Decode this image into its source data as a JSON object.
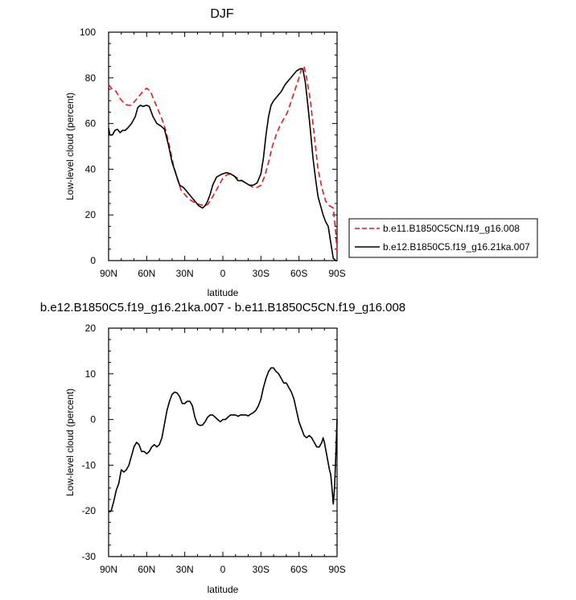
{
  "chart_data": [
    {
      "type": "line",
      "title": "DJF",
      "xlabel": "latitude",
      "ylabel": "Low-level cloud (percent)",
      "xlim": [
        90,
        -90
      ],
      "ylim": [
        0,
        100
      ],
      "x_ticks": [
        90,
        60,
        30,
        0,
        -30,
        -60,
        -90
      ],
      "x_tick_labels": [
        "90N",
        "60N",
        "30N",
        "0",
        "30S",
        "60S",
        "90S"
      ],
      "y_ticks": [
        0,
        20,
        40,
        60,
        80,
        100
      ],
      "y_tick_labels": [
        "0",
        "20",
        "40",
        "60",
        "80",
        "100"
      ],
      "legend_position": "outside-right",
      "series": [
        {
          "name": "b.e11.B1850C5CN.f19_g16.008",
          "color": "#e41a1c",
          "dash": "dashed",
          "points": [
            [
              90,
              77
            ],
            [
              87,
              75
            ],
            [
              84,
              74
            ],
            [
              81,
              71
            ],
            [
              78,
              69
            ],
            [
              75,
              68
            ],
            [
              72,
              68
            ],
            [
              69,
              70
            ],
            [
              66,
              72
            ],
            [
              63,
              74
            ],
            [
              60,
              75.5
            ],
            [
              57,
              74
            ],
            [
              54,
              70
            ],
            [
              51,
              66
            ],
            [
              48,
              62
            ],
            [
              45,
              57
            ],
            [
              42,
              50
            ],
            [
              39,
              42
            ],
            [
              36,
              36
            ],
            [
              33,
              31
            ],
            [
              30,
              29
            ],
            [
              27,
              27
            ],
            [
              24,
              26
            ],
            [
              21,
              25
            ],
            [
              18,
              24.5
            ],
            [
              15,
              24
            ],
            [
              12,
              24.5
            ],
            [
              9,
              27
            ],
            [
              6,
              30
            ],
            [
              3,
              33
            ],
            [
              0,
              36
            ],
            [
              -3,
              37.5
            ],
            [
              -6,
              38
            ],
            [
              -9,
              37
            ],
            [
              -12,
              36
            ],
            [
              -15,
              35
            ],
            [
              -18,
              34
            ],
            [
              -21,
              33
            ],
            [
              -24,
              32
            ],
            [
              -27,
              32
            ],
            [
              -30,
              33
            ],
            [
              -33,
              37
            ],
            [
              -36,
              43
            ],
            [
              -39,
              50
            ],
            [
              -42,
              55
            ],
            [
              -45,
              59
            ],
            [
              -48,
              62
            ],
            [
              -51,
              65
            ],
            [
              -54,
              70
            ],
            [
              -57,
              75
            ],
            [
              -60,
              80
            ],
            [
              -62,
              84
            ],
            [
              -64,
              85
            ],
            [
              -66,
              80
            ],
            [
              -69,
              70
            ],
            [
              -72,
              55
            ],
            [
              -75,
              40
            ],
            [
              -78,
              32
            ],
            [
              -81,
              26
            ],
            [
              -84,
              24
            ],
            [
              -87,
              23
            ],
            [
              -89,
              12
            ],
            [
              -90,
              4
            ]
          ]
        },
        {
          "name": "b.e12.B1850C5.f19_g16.21ka.007",
          "color": "#000000",
          "dash": "solid",
          "points": [
            [
              90,
              58
            ],
            [
              89,
              55
            ],
            [
              87,
              55
            ],
            [
              85,
              57
            ],
            [
              83,
              57.5
            ],
            [
              81,
              56
            ],
            [
              79,
              57
            ],
            [
              77,
              57
            ],
            [
              75,
              58
            ],
            [
              72,
              60
            ],
            [
              69,
              63
            ],
            [
              67,
              67
            ],
            [
              65,
              68
            ],
            [
              63,
              67.5
            ],
            [
              60,
              68
            ],
            [
              58,
              67.5
            ],
            [
              55,
              63
            ],
            [
              52,
              60
            ],
            [
              49,
              59
            ],
            [
              46,
              57.5
            ],
            [
              43,
              51
            ],
            [
              40,
              43
            ],
            [
              37,
              38
            ],
            [
              34,
              33
            ],
            [
              31,
              32
            ],
            [
              28,
              30
            ],
            [
              25,
              28
            ],
            [
              22,
              26
            ],
            [
              19,
              24
            ],
            [
              16,
              23
            ],
            [
              14,
              24
            ],
            [
              12,
              26
            ],
            [
              10,
              29
            ],
            [
              8,
              33
            ],
            [
              5,
              36.5
            ],
            [
              2,
              37.5
            ],
            [
              0,
              38
            ],
            [
              -3,
              38.5
            ],
            [
              -6,
              38
            ],
            [
              -9,
              37
            ],
            [
              -12,
              35
            ],
            [
              -15,
              35
            ],
            [
              -18,
              34
            ],
            [
              -21,
              33
            ],
            [
              -24,
              33
            ],
            [
              -27,
              34
            ],
            [
              -30,
              38
            ],
            [
              -32,
              45
            ],
            [
              -34,
              55
            ],
            [
              -36,
              63
            ],
            [
              -38,
              68
            ],
            [
              -40,
              70
            ],
            [
              -43,
              72
            ],
            [
              -46,
              74
            ],
            [
              -49,
              77
            ],
            [
              -52,
              79
            ],
            [
              -55,
              81
            ],
            [
              -58,
              83
            ],
            [
              -61,
              84
            ],
            [
              -63,
              84
            ],
            [
              -65,
              78
            ],
            [
              -67,
              68
            ],
            [
              -69,
              57
            ],
            [
              -71,
              45
            ],
            [
              -73,
              36
            ],
            [
              -75,
              28
            ],
            [
              -77,
              24
            ],
            [
              -79,
              20
            ],
            [
              -81,
              17
            ],
            [
              -83,
              15
            ],
            [
              -85,
              8
            ],
            [
              -87,
              1
            ],
            [
              -89,
              0
            ],
            [
              -90,
              0
            ]
          ]
        }
      ]
    },
    {
      "type": "line",
      "title": "b.e12.B1850C5.f19_g16.21ka.007 - b.e11.B1850C5CN.f19_g16.008",
      "xlabel": "latitude",
      "ylabel": "Low-level cloud (percent)",
      "xlim": [
        90,
        -90
      ],
      "ylim": [
        -30,
        20
      ],
      "x_ticks": [
        90,
        60,
        30,
        0,
        -30,
        -60,
        -90
      ],
      "x_tick_labels": [
        "90N",
        "60N",
        "30N",
        "0",
        "30S",
        "60S",
        "90S"
      ],
      "y_ticks": [
        -30,
        -20,
        -10,
        0,
        10,
        20
      ],
      "y_tick_labels": [
        "-30",
        "-20",
        "-10",
        "0",
        "10",
        "20"
      ],
      "series": [
        {
          "color": "#000000",
          "dash": "solid",
          "points": [
            [
              90,
              -20
            ],
            [
              89,
              -20.2
            ],
            [
              88,
              -20
            ],
            [
              86,
              -18
            ],
            [
              84,
              -15.5
            ],
            [
              82,
              -14
            ],
            [
              80,
              -11
            ],
            [
              78,
              -11.5
            ],
            [
              76,
              -11
            ],
            [
              74,
              -10
            ],
            [
              72,
              -8
            ],
            [
              70,
              -6
            ],
            [
              68,
              -5
            ],
            [
              66,
              -5.5
            ],
            [
              64,
              -7
            ],
            [
              62,
              -7
            ],
            [
              60,
              -7.5
            ],
            [
              58,
              -7
            ],
            [
              56,
              -6
            ],
            [
              54,
              -5.5
            ],
            [
              52,
              -6
            ],
            [
              50,
              -5.5
            ],
            [
              48,
              -4
            ],
            [
              46,
              -1
            ],
            [
              44,
              2
            ],
            [
              42,
              4
            ],
            [
              40,
              5.5
            ],
            [
              38,
              6
            ],
            [
              36,
              5.8
            ],
            [
              34,
              5
            ],
            [
              32,
              3.5
            ],
            [
              30,
              3.5
            ],
            [
              28,
              4
            ],
            [
              26,
              4
            ],
            [
              24,
              3
            ],
            [
              22,
              0.5
            ],
            [
              20,
              -1
            ],
            [
              18,
              -1.3
            ],
            [
              16,
              -1.2
            ],
            [
              14,
              -0.5
            ],
            [
              12,
              0.5
            ],
            [
              10,
              1
            ],
            [
              8,
              1
            ],
            [
              6,
              0.5
            ],
            [
              4,
              0
            ],
            [
              2,
              -0.5
            ],
            [
              0,
              0
            ],
            [
              -2,
              0
            ],
            [
              -4,
              0.5
            ],
            [
              -6,
              1
            ],
            [
              -8,
              1
            ],
            [
              -10,
              1
            ],
            [
              -12,
              0.7
            ],
            [
              -14,
              1
            ],
            [
              -16,
              1
            ],
            [
              -18,
              1
            ],
            [
              -20,
              0.8
            ],
            [
              -22,
              1.2
            ],
            [
              -24,
              1.5
            ],
            [
              -26,
              2
            ],
            [
              -28,
              3
            ],
            [
              -30,
              4.5
            ],
            [
              -32,
              7
            ],
            [
              -34,
              9
            ],
            [
              -36,
              10.5
            ],
            [
              -38,
              11.3
            ],
            [
              -40,
              11.3
            ],
            [
              -42,
              10.5
            ],
            [
              -44,
              10
            ],
            [
              -46,
              9
            ],
            [
              -48,
              8
            ],
            [
              -50,
              8
            ],
            [
              -52,
              7
            ],
            [
              -54,
              6
            ],
            [
              -56,
              4.5
            ],
            [
              -58,
              2
            ],
            [
              -60,
              -0.5
            ],
            [
              -62,
              -2
            ],
            [
              -64,
              -3.5
            ],
            [
              -66,
              -4
            ],
            [
              -68,
              -3.5
            ],
            [
              -70,
              -4
            ],
            [
              -72,
              -5
            ],
            [
              -74,
              -6
            ],
            [
              -76,
              -6
            ],
            [
              -78,
              -5
            ],
            [
              -79,
              -4
            ],
            [
              -80,
              -5
            ],
            [
              -82,
              -8
            ],
            [
              -84,
              -11
            ],
            [
              -85,
              -12
            ],
            [
              -86,
              -15
            ],
            [
              -87,
              -18.5
            ],
            [
              -88,
              -15
            ],
            [
              -89,
              -8
            ],
            [
              -90,
              0
            ]
          ]
        }
      ]
    }
  ]
}
